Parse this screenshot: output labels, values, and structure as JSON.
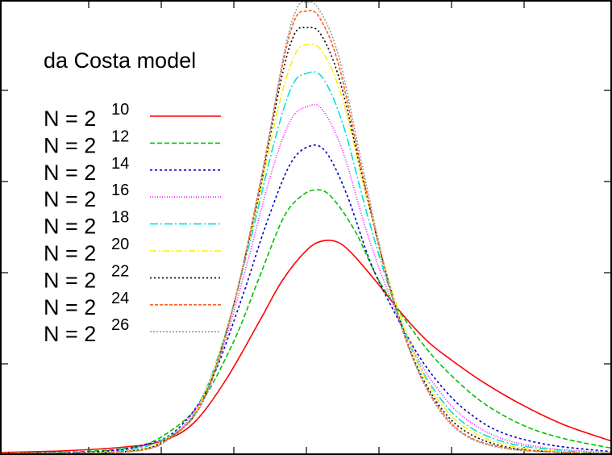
{
  "chart_data": {
    "type": "line",
    "title": "da Costa model",
    "xlabel": "",
    "ylabel": "",
    "xlim": [
      0,
      759
    ],
    "ylim": [
      0,
      525
    ],
    "grid": false,
    "legend_position": "left",
    "series": [
      {
        "name": "N = 2^10",
        "base": "N = 2",
        "exp": "10",
        "color": "#ff0000",
        "dash": "",
        "x": [
          0,
          80,
          150,
          200,
          240,
          280,
          320,
          350,
          380,
          400,
          420,
          440,
          470,
          500,
          530,
          560,
          600,
          650,
          700,
          759
        ],
        "y": [
          1,
          3,
          7,
          14,
          35,
          85,
          150,
          200,
          235,
          246,
          244,
          228,
          195,
          160,
          130,
          108,
          82,
          55,
          33,
          14
        ]
      },
      {
        "name": "N = 2^12",
        "base": "N = 2",
        "exp": "12",
        "color": "#00c000",
        "dash": "6,3",
        "x": [
          0,
          100,
          170,
          210,
          250,
          290,
          320,
          350,
          370,
          390,
          410,
          440,
          470,
          500,
          530,
          560,
          600,
          650,
          700,
          759
        ],
        "y": [
          0,
          2,
          8,
          25,
          60,
          130,
          200,
          270,
          295,
          305,
          298,
          258,
          200,
          158,
          120,
          90,
          58,
          32,
          17,
          6
        ]
      },
      {
        "name": "N = 2^14",
        "base": "N = 2",
        "exp": "14",
        "color": "#0000cc",
        "dash": "3,3",
        "x": [
          0,
          120,
          180,
          220,
          260,
          300,
          330,
          360,
          385,
          405,
          430,
          460,
          490,
          520,
          550,
          580,
          620,
          680,
          759
        ],
        "y": [
          0,
          2,
          10,
          28,
          80,
          180,
          265,
          335,
          356,
          348,
          300,
          220,
          162,
          112,
          75,
          48,
          25,
          10,
          2
        ]
      },
      {
        "name": "N = 2^16",
        "base": "N = 2",
        "exp": "16",
        "color": "#ff00ff",
        "dash": "1,2",
        "x": [
          0,
          130,
          190,
          230,
          270,
          305,
          335,
          360,
          382,
          400,
          425,
          455,
          485,
          515,
          545,
          575,
          620,
          680,
          759
        ],
        "y": [
          0,
          2,
          12,
          35,
          105,
          215,
          320,
          385,
          402,
          398,
          350,
          256,
          178,
          115,
          72,
          42,
          18,
          6,
          1
        ]
      },
      {
        "name": "N = 2^18",
        "base": "N = 2",
        "exp": "18",
        "color": "#00e0e0",
        "dash": "10,3,2,3",
        "x": [
          0,
          140,
          200,
          240,
          275,
          310,
          340,
          362,
          380,
          400,
          425,
          455,
          485,
          515,
          545,
          580,
          630,
          700,
          759
        ],
        "y": [
          0,
          2,
          15,
          45,
          125,
          245,
          360,
          425,
          440,
          435,
          382,
          278,
          185,
          112,
          65,
          32,
          12,
          3,
          0
        ]
      },
      {
        "name": "N = 2^20",
        "base": "N = 2",
        "exp": "20",
        "color": "#ffee00",
        "dash": "8,3,2,3",
        "x": [
          0,
          150,
          205,
          245,
          280,
          315,
          345,
          365,
          380,
          400,
          425,
          455,
          485,
          515,
          545,
          580,
          630,
          700,
          759
        ],
        "y": [
          0,
          2,
          16,
          52,
          140,
          270,
          400,
          460,
          473,
          465,
          410,
          295,
          192,
          112,
          60,
          28,
          9,
          2,
          0
        ]
      },
      {
        "name": "N = 2^22",
        "base": "N = 2",
        "exp": "22",
        "color": "#000000",
        "dash": "2,3",
        "x": [
          0,
          155,
          210,
          250,
          285,
          320,
          348,
          365,
          380,
          398,
          422,
          452,
          482,
          512,
          545,
          580,
          630,
          700,
          759
        ],
        "y": [
          0,
          2,
          18,
          58,
          155,
          295,
          430,
          485,
          493,
          485,
          430,
          310,
          198,
          112,
          55,
          24,
          7,
          1,
          0
        ]
      },
      {
        "name": "N = 2^24",
        "base": "N = 2",
        "exp": "24",
        "color": "#ff6020",
        "dash": "4,2",
        "x": [
          0,
          160,
          212,
          252,
          288,
          322,
          350,
          366,
          380,
          396,
          420,
          450,
          480,
          512,
          545,
          580,
          630,
          700,
          759
        ],
        "y": [
          0,
          2,
          19,
          62,
          165,
          310,
          448,
          503,
          512,
          505,
          450,
          322,
          202,
          110,
          52,
          20,
          6,
          1,
          0
        ]
      },
      {
        "name": "N = 2^26",
        "base": "N = 2",
        "exp": "26",
        "color": "#999999",
        "dash": "2,2",
        "x": [
          0,
          160,
          215,
          255,
          290,
          325,
          352,
          368,
          380,
          395,
          420,
          450,
          480,
          512,
          545,
          580,
          630,
          700,
          759
        ],
        "y": [
          0,
          2,
          20,
          66,
          172,
          322,
          462,
          515,
          522,
          515,
          460,
          330,
          205,
          110,
          50,
          19,
          5,
          1,
          0
        ]
      }
    ]
  }
}
